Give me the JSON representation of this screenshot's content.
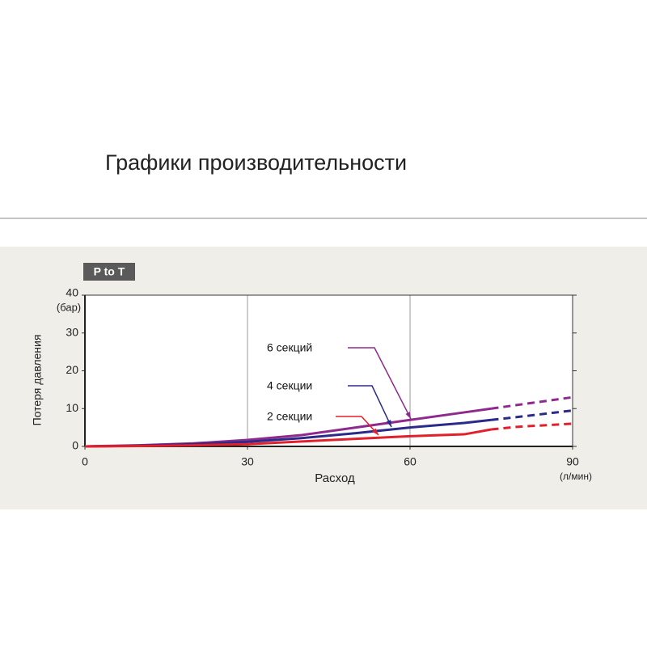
{
  "header": {
    "title": "Графики производительности"
  },
  "chart_data": {
    "type": "line",
    "panel_label": "P to T",
    "x_label": "Расход",
    "y_label": "Потеря давления",
    "x_unit": "(л/мин)",
    "y_unit": "(бар)",
    "x": [
      0,
      10,
      20,
      30,
      40,
      50,
      60,
      70,
      75,
      80,
      90
    ],
    "xlim": [
      0,
      90
    ],
    "xticks": [
      0,
      30,
      60,
      90
    ],
    "ylim": [
      0,
      40
    ],
    "yticks": [
      0,
      10,
      20,
      30,
      40
    ],
    "grid": true,
    "series": [
      {
        "name": "6 секций",
        "color": "#8e2a8e",
        "values": [
          0,
          0.3,
          0.8,
          1.7,
          3,
          5,
          7,
          9,
          10,
          null,
          null
        ],
        "projected": [
          null,
          null,
          null,
          null,
          null,
          null,
          null,
          null,
          10,
          11,
          13
        ]
      },
      {
        "name": "4 секции",
        "color": "#2b2a8a",
        "values": [
          0,
          0.2,
          0.6,
          1.2,
          2.2,
          3.5,
          5,
          6.2,
          7,
          null,
          null
        ],
        "projected": [
          null,
          null,
          null,
          null,
          null,
          null,
          null,
          null,
          7,
          7.8,
          9.5
        ]
      },
      {
        "name": "2 секции",
        "color": "#e2202c",
        "values": [
          0,
          0.1,
          0.3,
          0.6,
          1.3,
          2,
          2.7,
          3.2,
          4.5,
          null,
          null
        ],
        "projected": [
          null,
          null,
          null,
          null,
          null,
          null,
          null,
          null,
          4.5,
          5.2,
          6
        ]
      }
    ]
  }
}
